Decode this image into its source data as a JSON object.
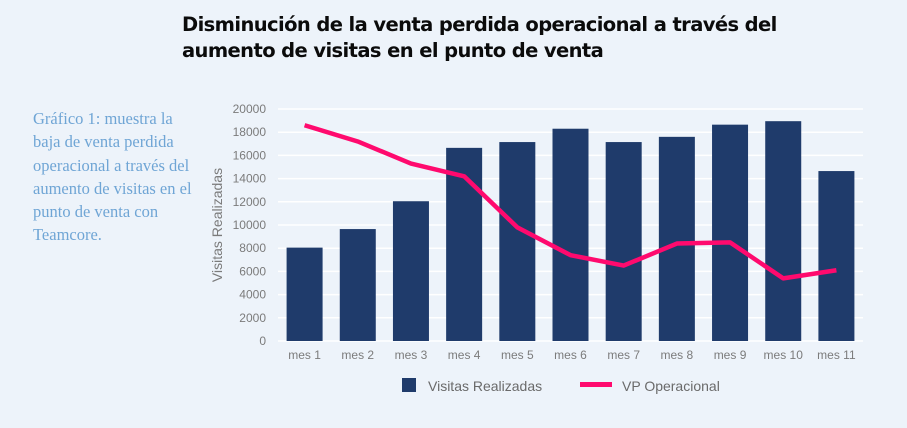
{
  "title": "Disminución de la venta perdida operacional a través del aumento de visitas en el punto de venta",
  "caption": "Gráfico 1: muestra la baja de venta perdida operacional a través del aumento de visitas en el punto de venta con Teamcore.",
  "chart_data": {
    "type": "bar+line",
    "title": "Disminución de la venta perdida operacional a través del aumento de visitas en el punto de venta",
    "ylabel": "Visitas Realizadas",
    "xlabel": "",
    "ylim": [
      0,
      20000
    ],
    "yticks": [
      0,
      2000,
      4000,
      6000,
      8000,
      10000,
      12000,
      14000,
      16000,
      18000,
      20000
    ],
    "grid": true,
    "legend": "bottom",
    "categories": [
      "mes 1",
      "mes 2",
      "mes 3",
      "mes 4",
      "mes 5",
      "mes 6",
      "mes 7",
      "mes 8",
      "mes 9",
      "mes 10",
      "mes 11"
    ],
    "series": [
      {
        "name": "Visitas Realizadas",
        "type": "bar",
        "color": "#1f3b6b",
        "values": [
          8050,
          9650,
          12050,
          16650,
          17150,
          18300,
          17150,
          17600,
          18650,
          18950,
          14650
        ]
      },
      {
        "name": "VP Operacional",
        "type": "line",
        "color": "#ff0a6e",
        "values": [
          18600,
          17200,
          15300,
          14200,
          9800,
          7400,
          6500,
          8400,
          8500,
          5400,
          6100
        ]
      }
    ]
  }
}
